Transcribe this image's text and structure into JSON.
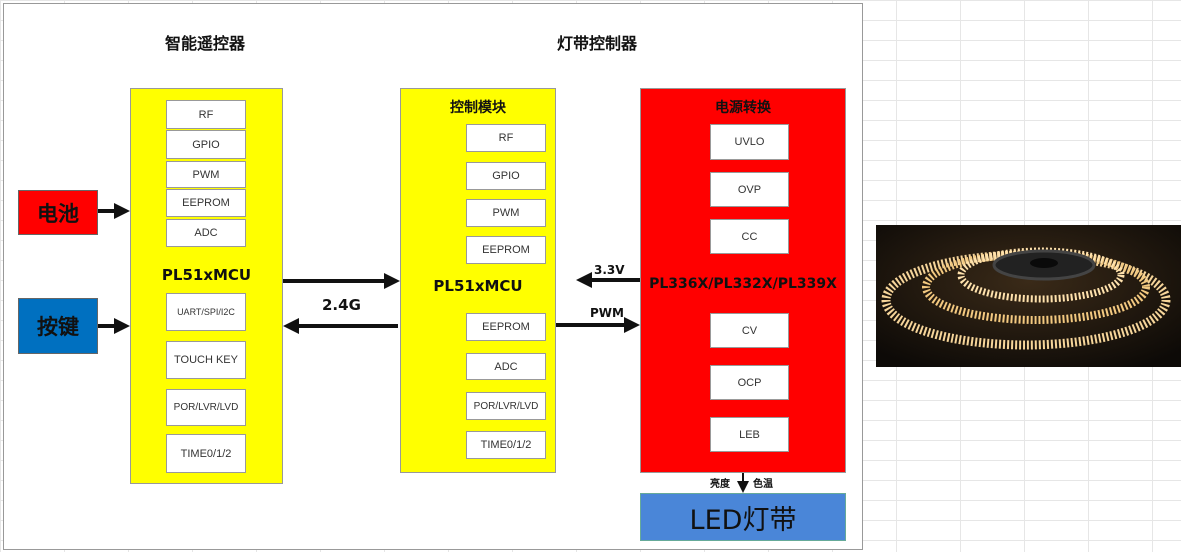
{
  "remote": {
    "title": "智能遥控器",
    "mcu": "PL51xMCU",
    "top_modules": [
      "RF",
      "GPIO",
      "PWM",
      "EEPROM",
      "ADC"
    ],
    "bottom_modules": [
      "UART/SPI/I2C",
      "TOUCH KEY",
      "POR/LVR/LVD",
      "TIME0/1/2"
    ]
  },
  "battery": {
    "label": "电池",
    "color": "#ff0000"
  },
  "keys": {
    "label": "按键",
    "color": "#0070c0"
  },
  "link_label": "2.4G",
  "controller": {
    "title": "灯带控制器",
    "control": {
      "title": "控制模块",
      "mcu": "PL51xMCU",
      "top_modules": [
        "RF",
        "GPIO",
        "PWM",
        "EEPROM"
      ],
      "bottom_modules": [
        "EEPROM",
        "ADC",
        "POR/LVR/LVD",
        "TIME0/1/2"
      ]
    },
    "power": {
      "title": "电源转换",
      "chip": "PL336X/PL332X/PL339X",
      "top_modules": [
        "UVLO",
        "OVP",
        "CC"
      ],
      "bottom_modules": [
        "CV",
        "OCP",
        "LEB"
      ]
    }
  },
  "arrow_3v3": "3.3V",
  "arrow_pwm": "PWM",
  "out_left": "亮度",
  "out_right": "色温",
  "led": {
    "label": "LED灯带",
    "color": "#4a86d8"
  },
  "colors": {
    "mcu_block": "#ffff00",
    "power_block": "#ff0000"
  }
}
